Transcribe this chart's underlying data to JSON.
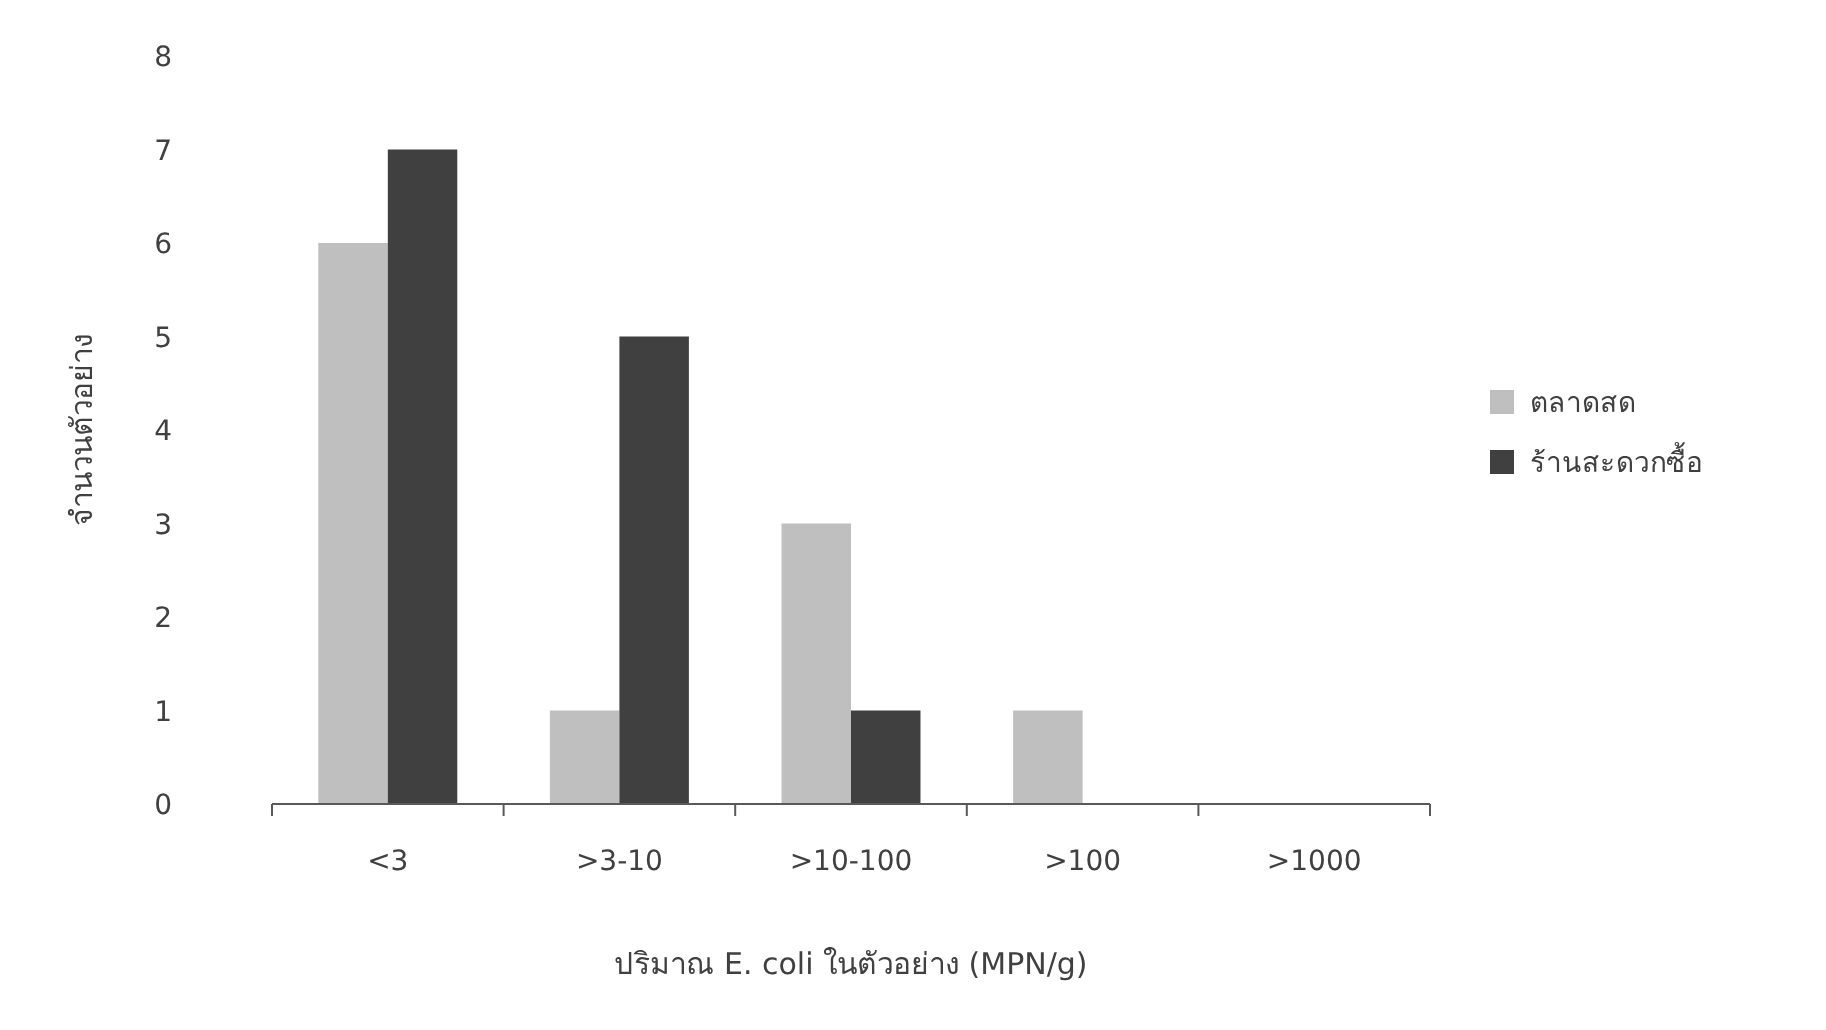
{
  "chart_data": {
    "type": "bar",
    "xlabel": "ปริมาณ E. coli ในตัวอย่าง (MPN/g)",
    "ylabel": "จำนวนตัวอย่าง",
    "categories": [
      "<3",
      ">3-10",
      ">10-100",
      ">100",
      ">1000"
    ],
    "series": [
      {
        "name": "ตลาดสด",
        "color": "#bfbfbf",
        "values": [
          6,
          1,
          3,
          1,
          0
        ]
      },
      {
        "name": "ร้านสะดวกซื้อ",
        "color": "#404040",
        "values": [
          7,
          5,
          1,
          0,
          0
        ]
      }
    ],
    "ylim": [
      0,
      8
    ],
    "yticks": [
      0,
      1,
      2,
      3,
      4,
      5,
      6,
      7,
      8
    ],
    "grid": false,
    "legend": "right"
  }
}
